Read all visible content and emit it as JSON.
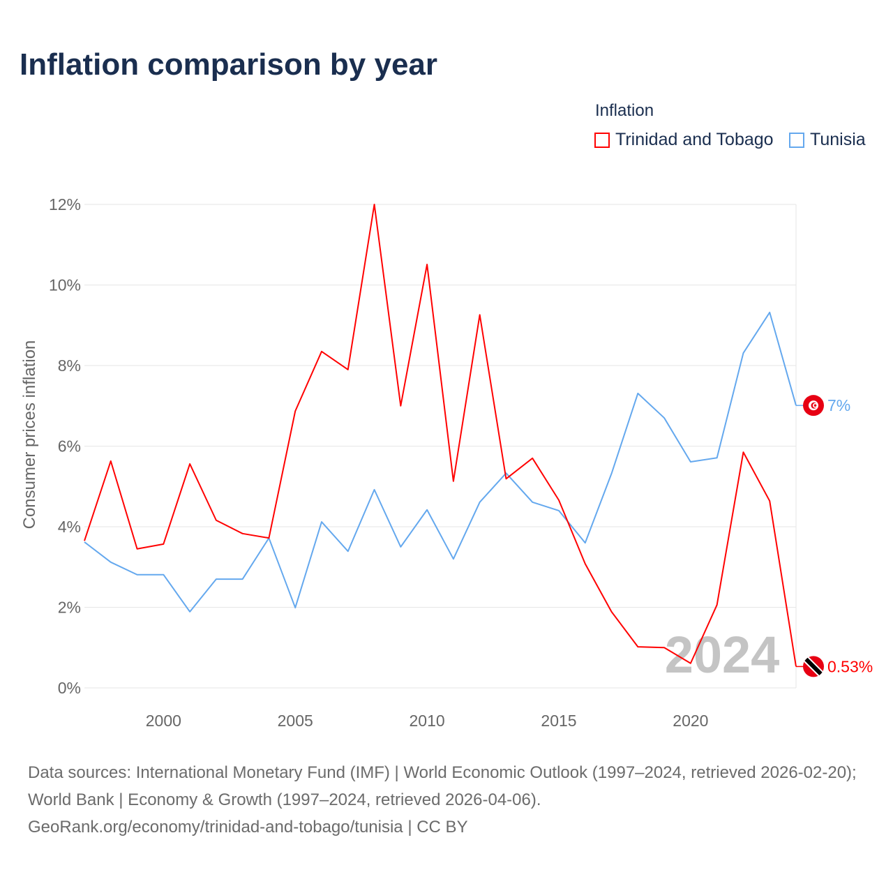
{
  "title": "Inflation comparison by year",
  "legend": {
    "title": "Inflation",
    "items": [
      {
        "label": "Trinidad and Tobago",
        "color": "#ff0000"
      },
      {
        "label": "Tunisia",
        "color": "#64a8ee"
      }
    ]
  },
  "watermark_year": "2024",
  "source": "Data sources: International Monetary Fund (IMF) | World Economic Outlook (1997–2024, retrieved 2026-02-20); World Bank | Economy & Growth (1997–2024, retrieved 2026-04-06).",
  "credit": "GeoRank.org/economy/trinidad-and-tobago/tunisia | CC BY",
  "chart_data": {
    "type": "line",
    "title": "Inflation comparison by year",
    "xlabel": "",
    "ylabel": "Consumer prices inflation",
    "xlim": [
      1997,
      2024
    ],
    "ylim": [
      0,
      12
    ],
    "x_ticks": [
      2000,
      2005,
      2010,
      2015,
      2020
    ],
    "y_ticks": [
      "0%",
      "2%",
      "4%",
      "6%",
      "8%",
      "10%",
      "12%"
    ],
    "y_tick_values": [
      0,
      2,
      4,
      6,
      8,
      10,
      12
    ],
    "grid": true,
    "legend_position": "top-right",
    "x": [
      1997,
      1998,
      1999,
      2000,
      2001,
      2002,
      2003,
      2004,
      2005,
      2006,
      2007,
      2008,
      2009,
      2010,
      2011,
      2012,
      2013,
      2014,
      2015,
      2016,
      2017,
      2018,
      2019,
      2020,
      2021,
      2022,
      2023,
      2024
    ],
    "series": [
      {
        "name": "Trinidad and Tobago",
        "color": "#ff0000",
        "end_label": "0.53%",
        "values": [
          3.65,
          5.63,
          3.45,
          3.57,
          5.56,
          4.16,
          3.83,
          3.72,
          6.87,
          8.35,
          7.9,
          12.0,
          7.0,
          10.51,
          5.13,
          9.26,
          5.19,
          5.7,
          4.66,
          3.08,
          1.89,
          1.02,
          1.0,
          0.61,
          2.06,
          5.85,
          4.64,
          0.53
        ]
      },
      {
        "name": "Tunisia",
        "color": "#64a8ee",
        "end_label": "7%",
        "values": [
          3.62,
          3.12,
          2.81,
          2.81,
          1.89,
          2.7,
          2.7,
          3.72,
          1.99,
          4.12,
          3.39,
          4.92,
          3.5,
          4.42,
          3.2,
          4.61,
          5.33,
          4.61,
          4.4,
          3.6,
          5.32,
          7.31,
          6.7,
          5.61,
          5.71,
          8.31,
          9.32,
          7.01
        ]
      }
    ]
  }
}
